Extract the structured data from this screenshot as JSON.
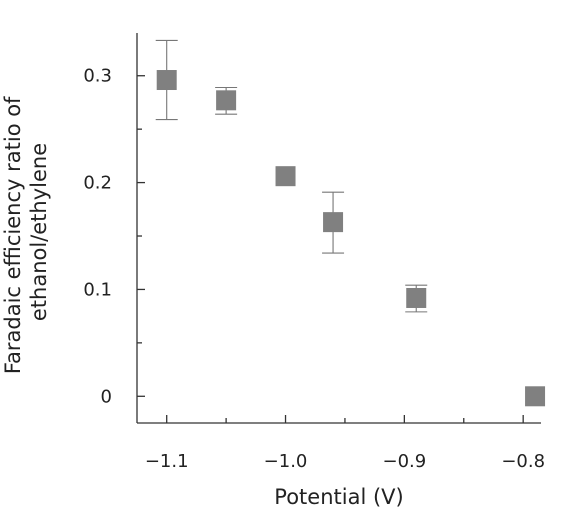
{
  "chart_data": {
    "type": "scatter",
    "title": "",
    "xlabel": "Potential (V)",
    "ylabel_lines": [
      "Faradaic efficiency ratio of",
      "ethanol/ethylene"
    ],
    "xlim": [
      -1.125,
      -0.785
    ],
    "ylim": [
      -0.025,
      0.34
    ],
    "x_ticks": [
      -1.1,
      -1.0,
      -0.9,
      -0.8
    ],
    "x_tick_labels": [
      "−1.1",
      "−1.0",
      "−0.9",
      "−0.8"
    ],
    "x_minor_ticks": [
      -1.05,
      -0.95,
      -0.85
    ],
    "y_ticks": [
      0,
      0.1,
      0.2,
      0.3
    ],
    "y_tick_labels": [
      "0",
      "0.1",
      "0.2",
      "0.3"
    ],
    "y_minor_ticks": [
      0.05,
      0.15,
      0.25
    ],
    "grid": false,
    "legend": "none",
    "marker": "square",
    "marker_color": "#808080",
    "errorbar_color": "#777777",
    "axis_color": "#333333",
    "points": [
      {
        "x": -1.1,
        "y": 0.296,
        "err_low": 0.259,
        "err_high": 0.333
      },
      {
        "x": -1.05,
        "y": 0.277,
        "err_low": 0.264,
        "err_high": 0.289
      },
      {
        "x": -1.0,
        "y": 0.206,
        "err_low": null,
        "err_high": null
      },
      {
        "x": -0.96,
        "y": 0.163,
        "err_low": 0.134,
        "err_high": 0.191
      },
      {
        "x": -0.89,
        "y": 0.092,
        "err_low": 0.079,
        "err_high": 0.104
      },
      {
        "x": -0.79,
        "y": 0.0,
        "err_low": null,
        "err_high": null
      }
    ]
  }
}
